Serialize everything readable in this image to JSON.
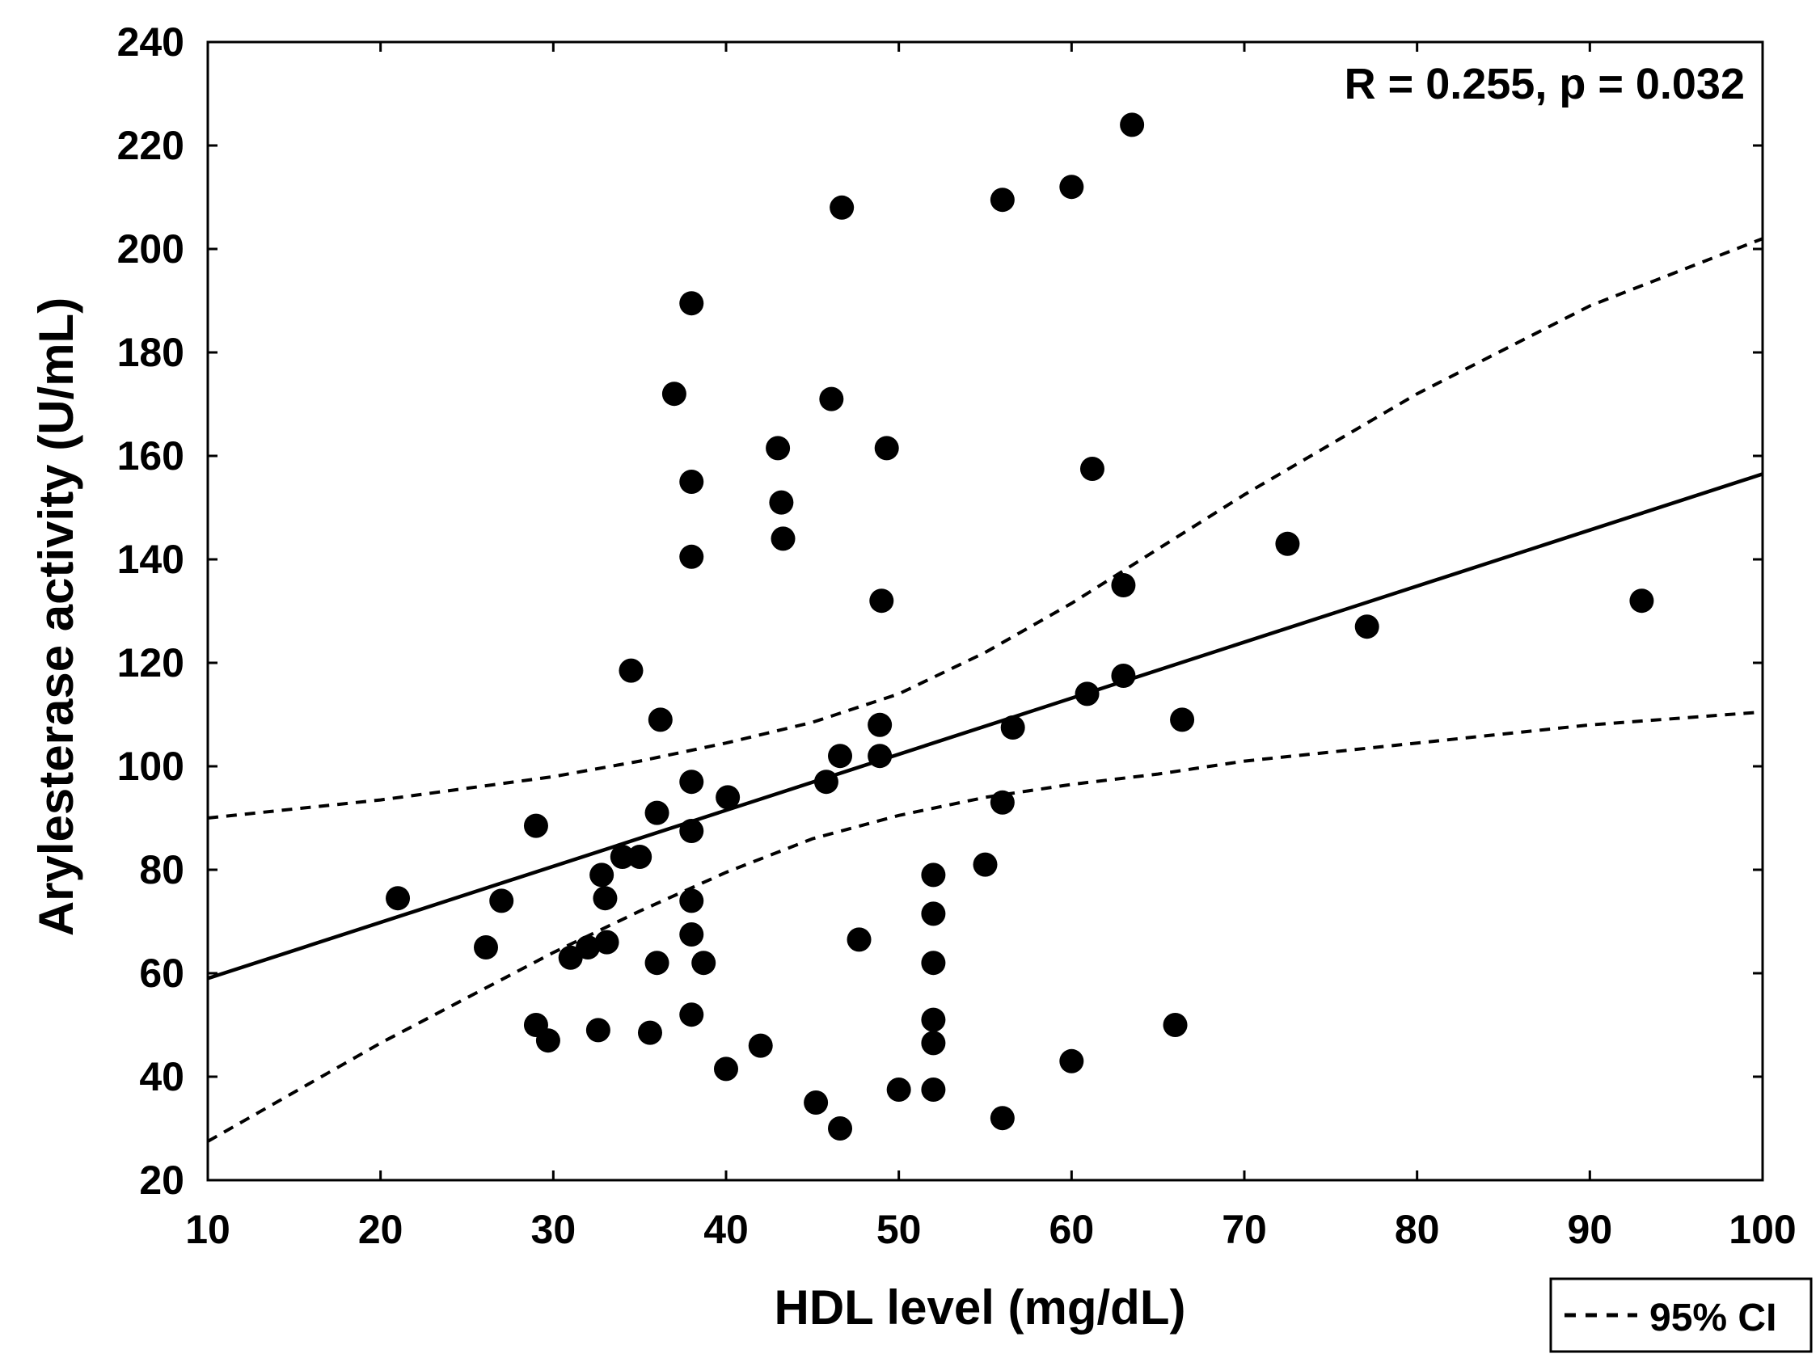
{
  "chart_data": {
    "type": "scatter",
    "title": "",
    "xlabel": "HDL level (mg/dL)",
    "ylabel": "Arylesterase activity (U/mL)",
    "xlim": [
      10,
      100
    ],
    "ylim": [
      20,
      240
    ],
    "xticks": [
      10,
      20,
      30,
      40,
      50,
      60,
      70,
      80,
      90,
      100
    ],
    "yticks": [
      20,
      40,
      60,
      80,
      100,
      120,
      140,
      160,
      180,
      200,
      220,
      240
    ],
    "annotation": "R = 0.255, p = 0.032",
    "legend": {
      "label": "95% CI",
      "placement": "bottom-right, below plot"
    },
    "points": [
      [
        21,
        74.5
      ],
      [
        26.1,
        65
      ],
      [
        27,
        74
      ],
      [
        29,
        88.5
      ],
      [
        29,
        50
      ],
      [
        29.7,
        47
      ],
      [
        31,
        63
      ],
      [
        32,
        65
      ],
      [
        32.6,
        49
      ],
      [
        32.8,
        79
      ],
      [
        33,
        74.5
      ],
      [
        33.1,
        66
      ],
      [
        34,
        82.5
      ],
      [
        35,
        82.5
      ],
      [
        34.5,
        118.5
      ],
      [
        35.6,
        48.5
      ],
      [
        36,
        91
      ],
      [
        36,
        62
      ],
      [
        36.2,
        109
      ],
      [
        37,
        172
      ],
      [
        38,
        189.5
      ],
      [
        38,
        155
      ],
      [
        38,
        140.5
      ],
      [
        38,
        97
      ],
      [
        38,
        87.5
      ],
      [
        38,
        74
      ],
      [
        38,
        67.5
      ],
      [
        38,
        52
      ],
      [
        38.7,
        62
      ],
      [
        40,
        41.5
      ],
      [
        40.1,
        94
      ],
      [
        42,
        46
      ],
      [
        43,
        161.5
      ],
      [
        43.2,
        151
      ],
      [
        43.3,
        144
      ],
      [
        45.2,
        35
      ],
      [
        45.8,
        97
      ],
      [
        46.1,
        171
      ],
      [
        46.6,
        102
      ],
      [
        46.6,
        30
      ],
      [
        46.7,
        208
      ],
      [
        47.7,
        66.5
      ],
      [
        48.9,
        108
      ],
      [
        49,
        132
      ],
      [
        48.9,
        102
      ],
      [
        49.3,
        161.5
      ],
      [
        50,
        37.5
      ],
      [
        52,
        79
      ],
      [
        52,
        71.5
      ],
      [
        52,
        62
      ],
      [
        52,
        51
      ],
      [
        52,
        46.5
      ],
      [
        52,
        37.5
      ],
      [
        55,
        81
      ],
      [
        56,
        209.5
      ],
      [
        56,
        93
      ],
      [
        56,
        32
      ],
      [
        56.6,
        107.5
      ],
      [
        60,
        212
      ],
      [
        60,
        43
      ],
      [
        60.9,
        114
      ],
      [
        61.2,
        157.5
      ],
      [
        63,
        135
      ],
      [
        63,
        117.5
      ],
      [
        63.5,
        224
      ],
      [
        66,
        50
      ],
      [
        66.4,
        109
      ],
      [
        72.5,
        143
      ],
      [
        77.1,
        127
      ],
      [
        93,
        132
      ]
    ],
    "series": [
      {
        "name": "regression",
        "style": "solid",
        "x": [
          10,
          100
        ],
        "y": [
          59,
          156.5
        ]
      },
      {
        "name": "95% CI upper",
        "style": "dashed",
        "x": [
          10,
          20,
          30,
          35,
          40,
          45,
          50,
          55,
          60,
          65,
          70,
          80,
          90,
          100
        ],
        "y": [
          90,
          93.5,
          98,
          101,
          104.5,
          108.5,
          114,
          122,
          131.5,
          142,
          152.5,
          172,
          189,
          202
        ]
      },
      {
        "name": "95% CI lower",
        "style": "dashed",
        "x": [
          10,
          20,
          30,
          35,
          40,
          45,
          50,
          55,
          60,
          65,
          70,
          80,
          90,
          100
        ],
        "y": [
          27.5,
          46.5,
          64,
          72,
          79.5,
          86,
          90.5,
          94,
          96.5,
          98.5,
          101,
          104.5,
          108,
          110.5
        ]
      }
    ]
  }
}
